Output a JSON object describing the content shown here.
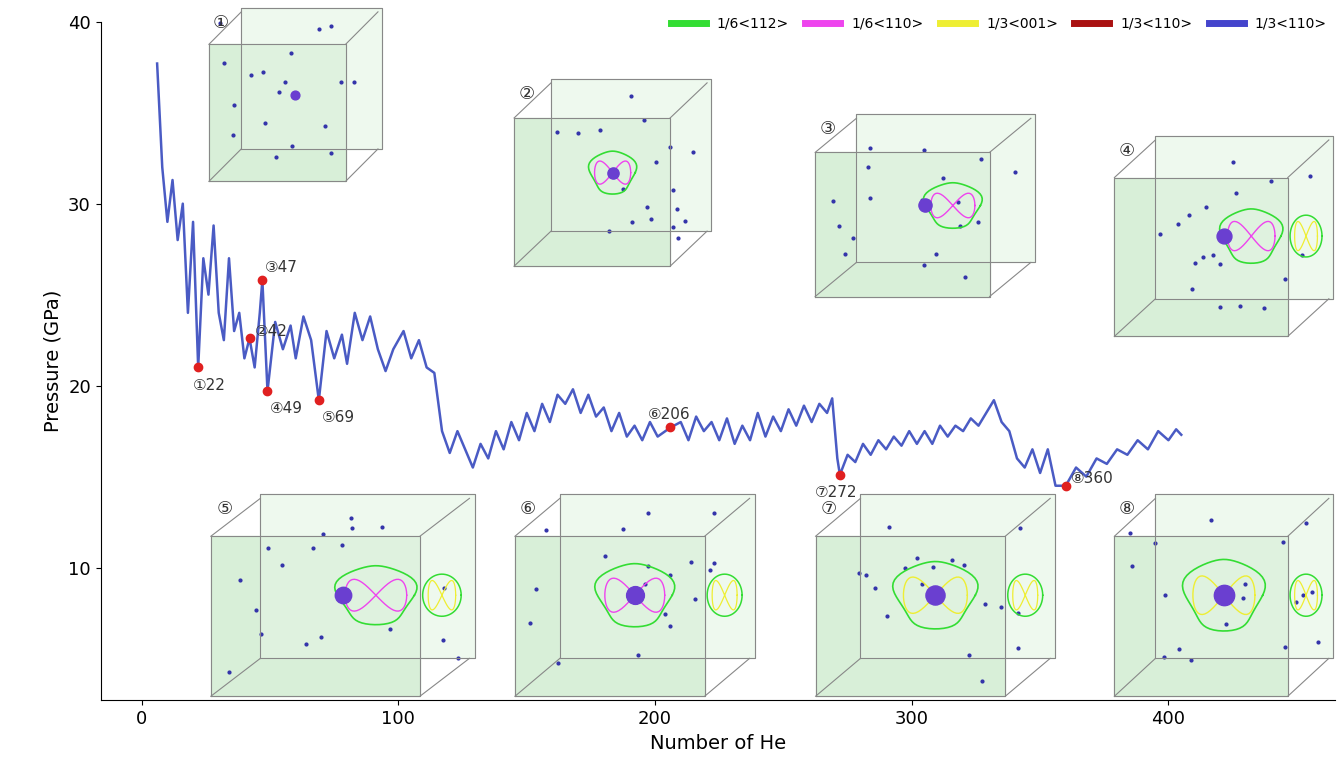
{
  "chart_data": {
    "type": "line",
    "xlabel": "Number of He",
    "ylabel": "Pressure (GPa)",
    "xlim": [
      -16,
      465
    ],
    "ylim": [
      2.7,
      40
    ],
    "xticks": [
      0,
      100,
      200,
      300,
      400
    ],
    "yticks": [
      10,
      20,
      30,
      40
    ],
    "color": "#4a5bc4",
    "x": [
      6,
      8,
      10,
      12,
      14,
      16,
      18,
      20,
      22,
      24,
      26,
      28,
      30,
      32,
      34,
      36,
      38,
      40,
      42,
      44,
      46,
      47,
      49,
      52,
      55,
      58,
      60,
      63,
      66,
      69,
      72,
      75,
      78,
      80,
      83,
      86,
      89,
      92,
      95,
      98,
      102,
      105,
      108,
      111,
      114,
      117,
      120,
      123,
      126,
      129,
      132,
      135,
      138,
      141,
      144,
      147,
      150,
      153,
      156,
      159,
      162,
      165,
      168,
      171,
      174,
      177,
      180,
      183,
      186,
      189,
      192,
      195,
      198,
      201,
      206,
      210,
      213,
      216,
      219,
      222,
      225,
      228,
      231,
      234,
      237,
      240,
      243,
      246,
      249,
      252,
      255,
      258,
      261,
      264,
      267,
      269,
      271,
      272,
      275,
      278,
      281,
      284,
      287,
      290,
      293,
      296,
      299,
      302,
      305,
      308,
      311,
      314,
      317,
      320,
      323,
      326,
      329,
      332,
      335,
      338,
      341,
      344,
      347,
      350,
      353,
      356,
      360,
      364,
      368,
      372,
      376,
      380,
      384,
      388,
      392,
      396,
      400,
      403,
      405
    ],
    "values": [
      37.7,
      32,
      29,
      31.3,
      28,
      30,
      24,
      29,
      21.0,
      27,
      25,
      28.8,
      24,
      22.5,
      27,
      23,
      24,
      21.5,
      22.6,
      21,
      24,
      25.8,
      19.7,
      23.5,
      22,
      23.3,
      21.5,
      23.8,
      22.5,
      19.2,
      23,
      21.5,
      22.8,
      21.2,
      24,
      22.5,
      23.8,
      22,
      20.8,
      22,
      23,
      21.5,
      22.5,
      21,
      20.7,
      17.5,
      16.3,
      17.5,
      16.5,
      15.5,
      16.8,
      16,
      17.5,
      16.5,
      18,
      17,
      18.5,
      17.5,
      19,
      18,
      19.5,
      19,
      19.8,
      18.5,
      19.5,
      18.3,
      18.8,
      17.5,
      18.5,
      17.2,
      17.8,
      17,
      18,
      17.2,
      17.7,
      18,
      17,
      18.3,
      17.5,
      18,
      17,
      18.2,
      16.8,
      17.8,
      17,
      18.5,
      17.2,
      18.3,
      17.5,
      18.7,
      17.8,
      18.9,
      18,
      19,
      18.5,
      19.3,
      16,
      15.1,
      16.2,
      15.8,
      16.8,
      16.2,
      17,
      16.5,
      17.2,
      16.7,
      17.5,
      16.8,
      17.5,
      16.8,
      17.8,
      17.2,
      17.8,
      17.5,
      18.2,
      17.8,
      18.5,
      19.2,
      18,
      17.5,
      16,
      15.5,
      16.5,
      15.2,
      16.5,
      14.5,
      14.5,
      15.5,
      15,
      16,
      15.7,
      16.5,
      16.2,
      17,
      16.5,
      17.5,
      17,
      17.6,
      17.3
    ],
    "annotations": [
      {
        "x": 22,
        "y": 21.0,
        "label": "①22"
      },
      {
        "x": 42,
        "y": 22.6,
        "label": "②42"
      },
      {
        "x": 47,
        "y": 25.8,
        "label": "③47"
      },
      {
        "x": 49,
        "y": 19.7,
        "label": "④49"
      },
      {
        "x": 69,
        "y": 19.2,
        "label": "⑤69"
      },
      {
        "x": 206,
        "y": 17.7,
        "label": "⑥206"
      },
      {
        "x": 272,
        "y": 15.1,
        "label": "⑦272"
      },
      {
        "x": 360,
        "y": 14.5,
        "label": "⑧360"
      }
    ],
    "annotation_color": "#e02020",
    "legend": "upper right",
    "legend_entries": [
      {
        "name": "1/6<112>",
        "color": "#33dd33"
      },
      {
        "name": "1/6<110>",
        "color": "#ee44ee"
      },
      {
        "name": "1/3<001>",
        "color": "#eeee33"
      },
      {
        "name": "1/3<110>",
        "color": "#aa1111"
      },
      {
        "name": "1/3<110>",
        "color": "#4444cc"
      }
    ],
    "insets": [
      "①",
      "②",
      "③",
      "④",
      "⑤",
      "⑥",
      "⑦",
      "⑧"
    ]
  }
}
